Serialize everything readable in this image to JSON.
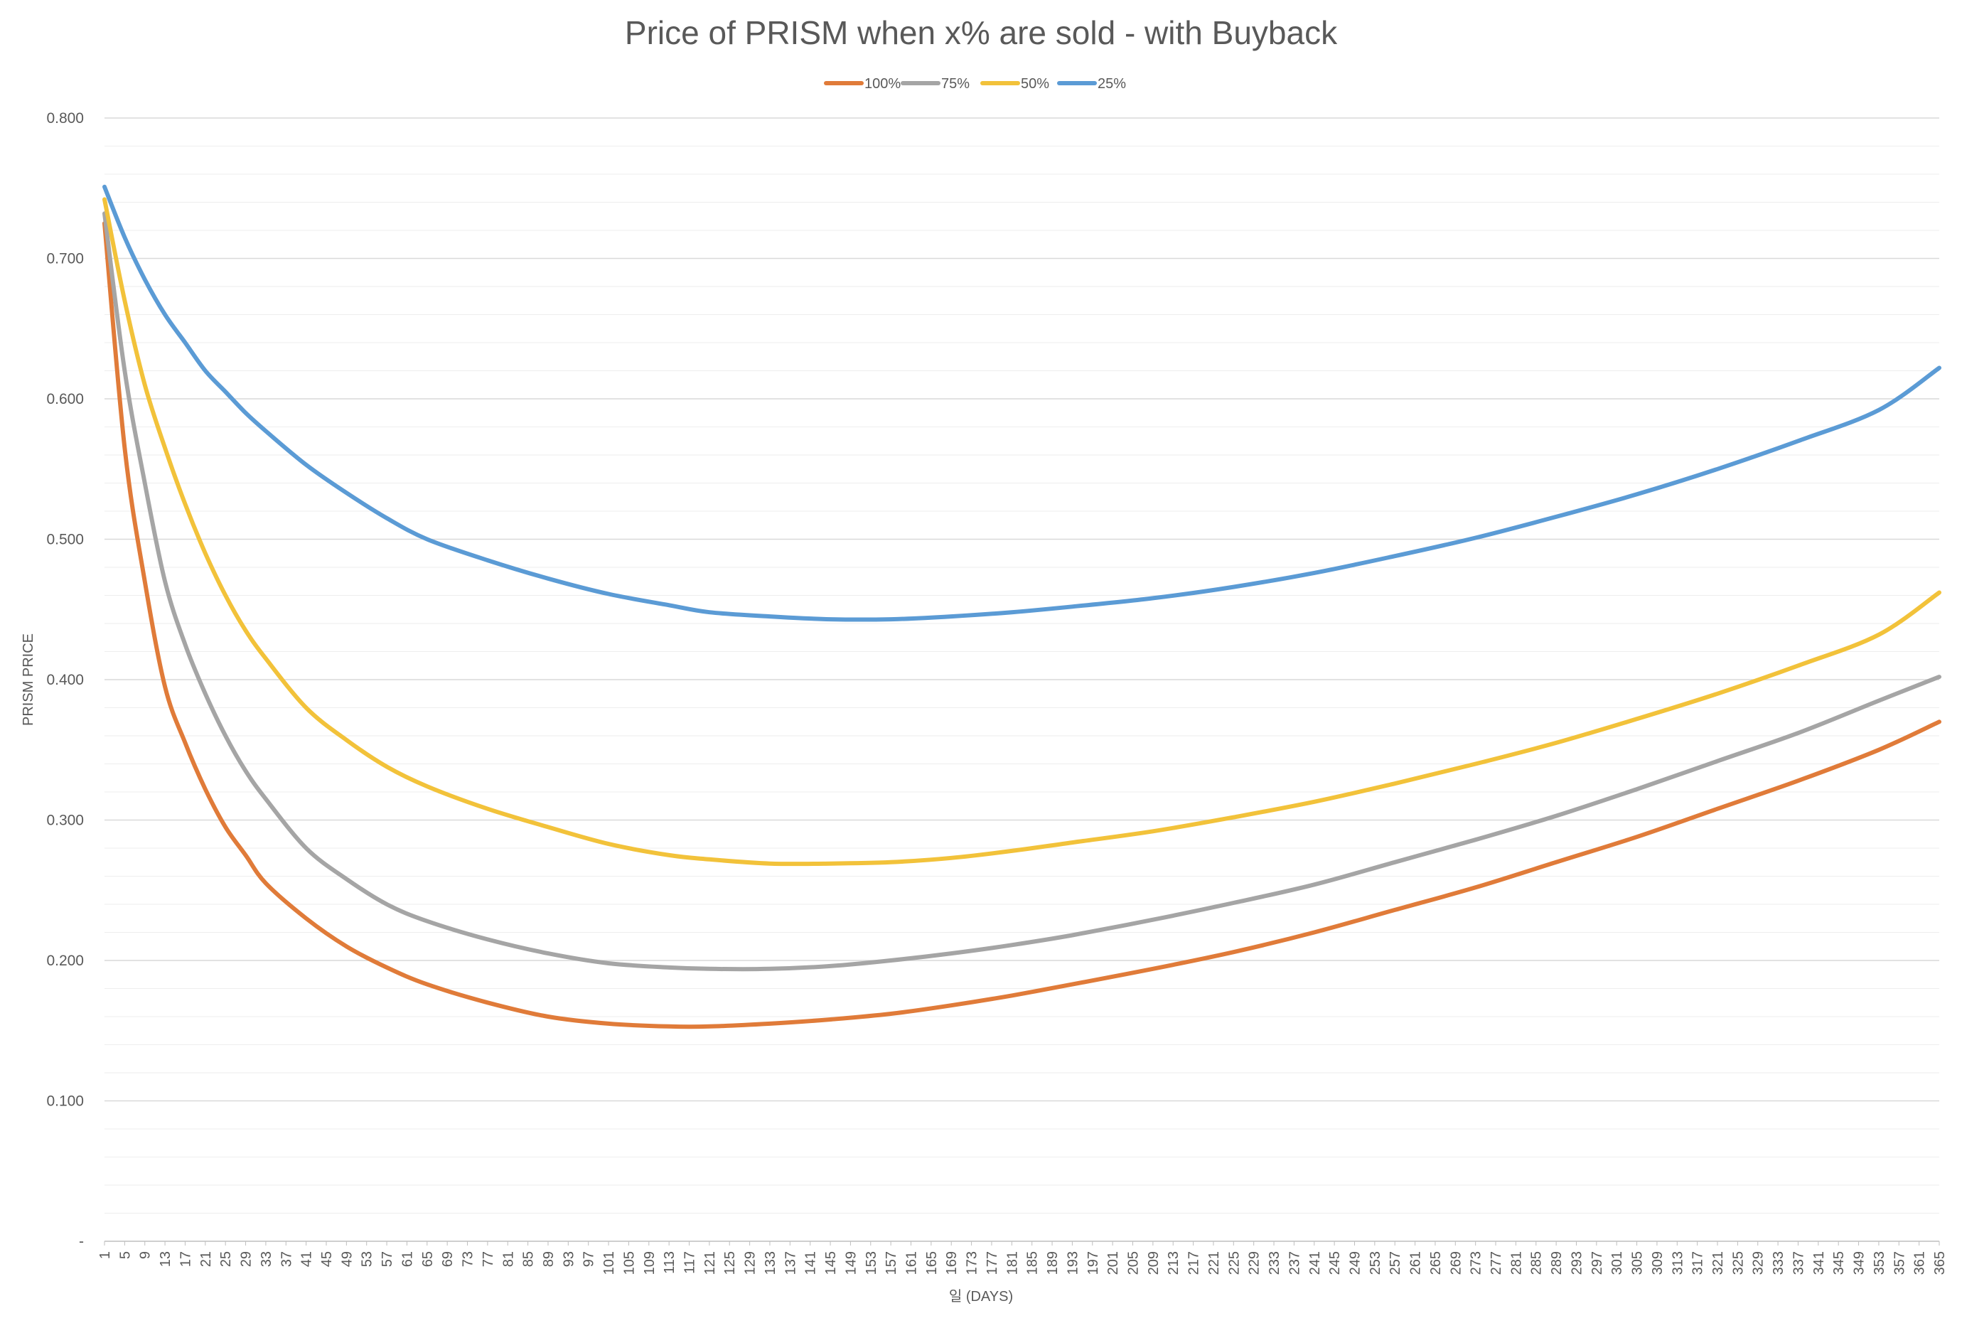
{
  "chart_data": {
    "type": "line",
    "title": "Price of PRISM when x% are sold - with Buyback",
    "xlabel": "일 (DAYS)",
    "ylabel": "PRISM PRICE",
    "xlim": [
      1,
      365
    ],
    "ylim": [
      0,
      0.8
    ],
    "y_ticks": [
      "-",
      "0.100",
      "0.200",
      "0.300",
      "0.400",
      "0.500",
      "0.600",
      "0.700",
      "0.800"
    ],
    "y_tick_values": [
      0,
      0.1,
      0.2,
      0.3,
      0.4,
      0.5,
      0.6,
      0.7,
      0.8
    ],
    "x_tick_start": 1,
    "x_tick_step": 4,
    "x_tick_end": 365,
    "grid": "horizontal major and minor",
    "legend_position": "top-center",
    "series": [
      {
        "name": "100%",
        "color": "#E07B39",
        "x": [
          1,
          5,
          9,
          13,
          17,
          21,
          25,
          29,
          33,
          41,
          49,
          57,
          65,
          77,
          89,
          101,
          113,
          121,
          133,
          145,
          157,
          169,
          181,
          193,
          209,
          225,
          241,
          257,
          273,
          289,
          305,
          321,
          337,
          353,
          365
        ],
        "y": [
          0.725,
          0.565,
          0.47,
          0.395,
          0.355,
          0.322,
          0.295,
          0.275,
          0.255,
          0.23,
          0.21,
          0.195,
          0.183,
          0.17,
          0.16,
          0.155,
          0.153,
          0.153,
          0.155,
          0.158,
          0.162,
          0.168,
          0.175,
          0.183,
          0.194,
          0.206,
          0.22,
          0.236,
          0.252,
          0.27,
          0.288,
          0.308,
          0.328,
          0.35,
          0.37
        ]
      },
      {
        "name": "75%",
        "color": "#A5A5A5",
        "x": [
          1,
          5,
          9,
          13,
          17,
          21,
          25,
          29,
          33,
          41,
          49,
          57,
          65,
          77,
          89,
          101,
          113,
          121,
          133,
          145,
          157,
          169,
          181,
          193,
          209,
          225,
          241,
          257,
          273,
          289,
          305,
          321,
          337,
          353,
          365
        ],
        "y": [
          0.732,
          0.62,
          0.54,
          0.47,
          0.425,
          0.39,
          0.36,
          0.335,
          0.315,
          0.28,
          0.258,
          0.24,
          0.228,
          0.215,
          0.205,
          0.198,
          0.195,
          0.194,
          0.194,
          0.196,
          0.2,
          0.205,
          0.211,
          0.218,
          0.229,
          0.241,
          0.254,
          0.27,
          0.286,
          0.303,
          0.322,
          0.342,
          0.362,
          0.385,
          0.402
        ]
      },
      {
        "name": "50%",
        "color": "#F2C23A",
        "x": [
          1,
          5,
          9,
          13,
          17,
          21,
          25,
          29,
          33,
          41,
          49,
          57,
          65,
          77,
          89,
          101,
          113,
          121,
          133,
          145,
          157,
          169,
          181,
          193,
          209,
          225,
          241,
          257,
          273,
          289,
          305,
          321,
          337,
          353,
          365
        ],
        "y": [
          0.742,
          0.67,
          0.61,
          0.565,
          0.525,
          0.49,
          0.46,
          0.435,
          0.415,
          0.38,
          0.357,
          0.338,
          0.324,
          0.308,
          0.295,
          0.283,
          0.275,
          0.272,
          0.269,
          0.269,
          0.27,
          0.273,
          0.278,
          0.284,
          0.292,
          0.302,
          0.313,
          0.326,
          0.34,
          0.355,
          0.372,
          0.39,
          0.41,
          0.432,
          0.462
        ]
      },
      {
        "name": "25%",
        "color": "#5B9BD5",
        "x": [
          1,
          5,
          9,
          13,
          17,
          21,
          25,
          29,
          33,
          41,
          49,
          57,
          65,
          77,
          89,
          101,
          113,
          121,
          133,
          145,
          157,
          169,
          181,
          193,
          209,
          225,
          241,
          257,
          273,
          289,
          305,
          321,
          337,
          353,
          365
        ],
        "y": [
          0.751,
          0.715,
          0.685,
          0.66,
          0.64,
          0.62,
          0.605,
          0.59,
          0.577,
          0.553,
          0.533,
          0.515,
          0.5,
          0.485,
          0.472,
          0.461,
          0.453,
          0.448,
          0.445,
          0.443,
          0.443,
          0.445,
          0.448,
          0.452,
          0.458,
          0.466,
          0.476,
          0.488,
          0.501,
          0.516,
          0.532,
          0.55,
          0.57,
          0.592,
          0.622
        ]
      }
    ]
  }
}
